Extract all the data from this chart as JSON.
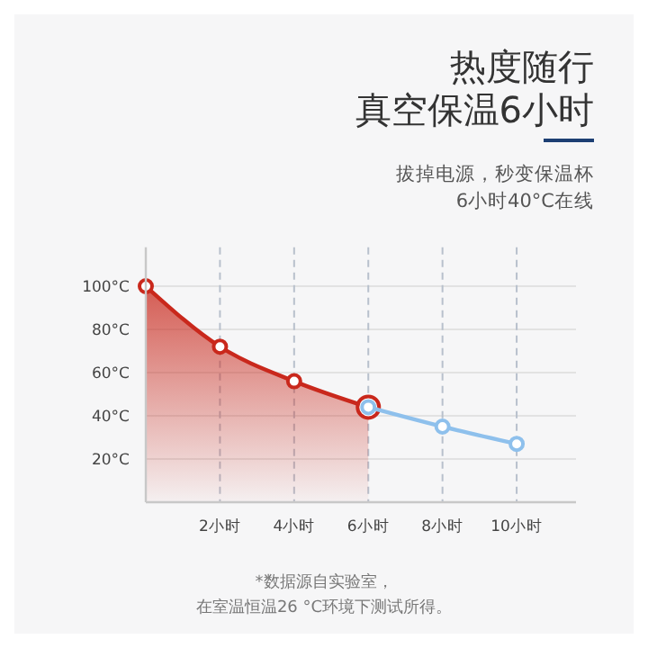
{
  "chart_data": {
    "type": "line",
    "title": "热度随行",
    "subtitle": "真空保温6小时",
    "annotations": [
      "拔掉电源，秒变保温杯",
      "6小时40°C在线",
      "*数据源自实验室，",
      "在室温恒温26 °C环境下测试所得。"
    ],
    "series": [
      {
        "type": "area",
        "color": "#c9281c",
        "x": [
          0,
          2,
          4,
          6
        ],
        "values": [
          100,
          72,
          56,
          44
        ]
      },
      {
        "type": "line",
        "color": "#8ec0ec",
        "x": [
          6,
          8,
          10
        ],
        "values": [
          44,
          35,
          27
        ]
      }
    ],
    "xlim": [
      0,
      11.6
    ],
    "xticks": [
      {
        "value": 2,
        "label": "2小时"
      },
      {
        "value": 4,
        "label": "4小时"
      },
      {
        "value": 6,
        "label": "6小时"
      },
      {
        "value": 8,
        "label": "8小时"
      },
      {
        "value": 10,
        "label": "10小时"
      }
    ],
    "ylim": [
      0,
      118
    ],
    "yticks": [
      {
        "value": 20,
        "label": "20°C"
      },
      {
        "value": 40,
        "label": "40°C"
      },
      {
        "value": 60,
        "label": "60°C"
      },
      {
        "value": 80,
        "label": "80°C"
      },
      {
        "value": 100,
        "label": "100°C"
      }
    ],
    "grid": true,
    "marker": "circle",
    "line_style": "solid"
  }
}
